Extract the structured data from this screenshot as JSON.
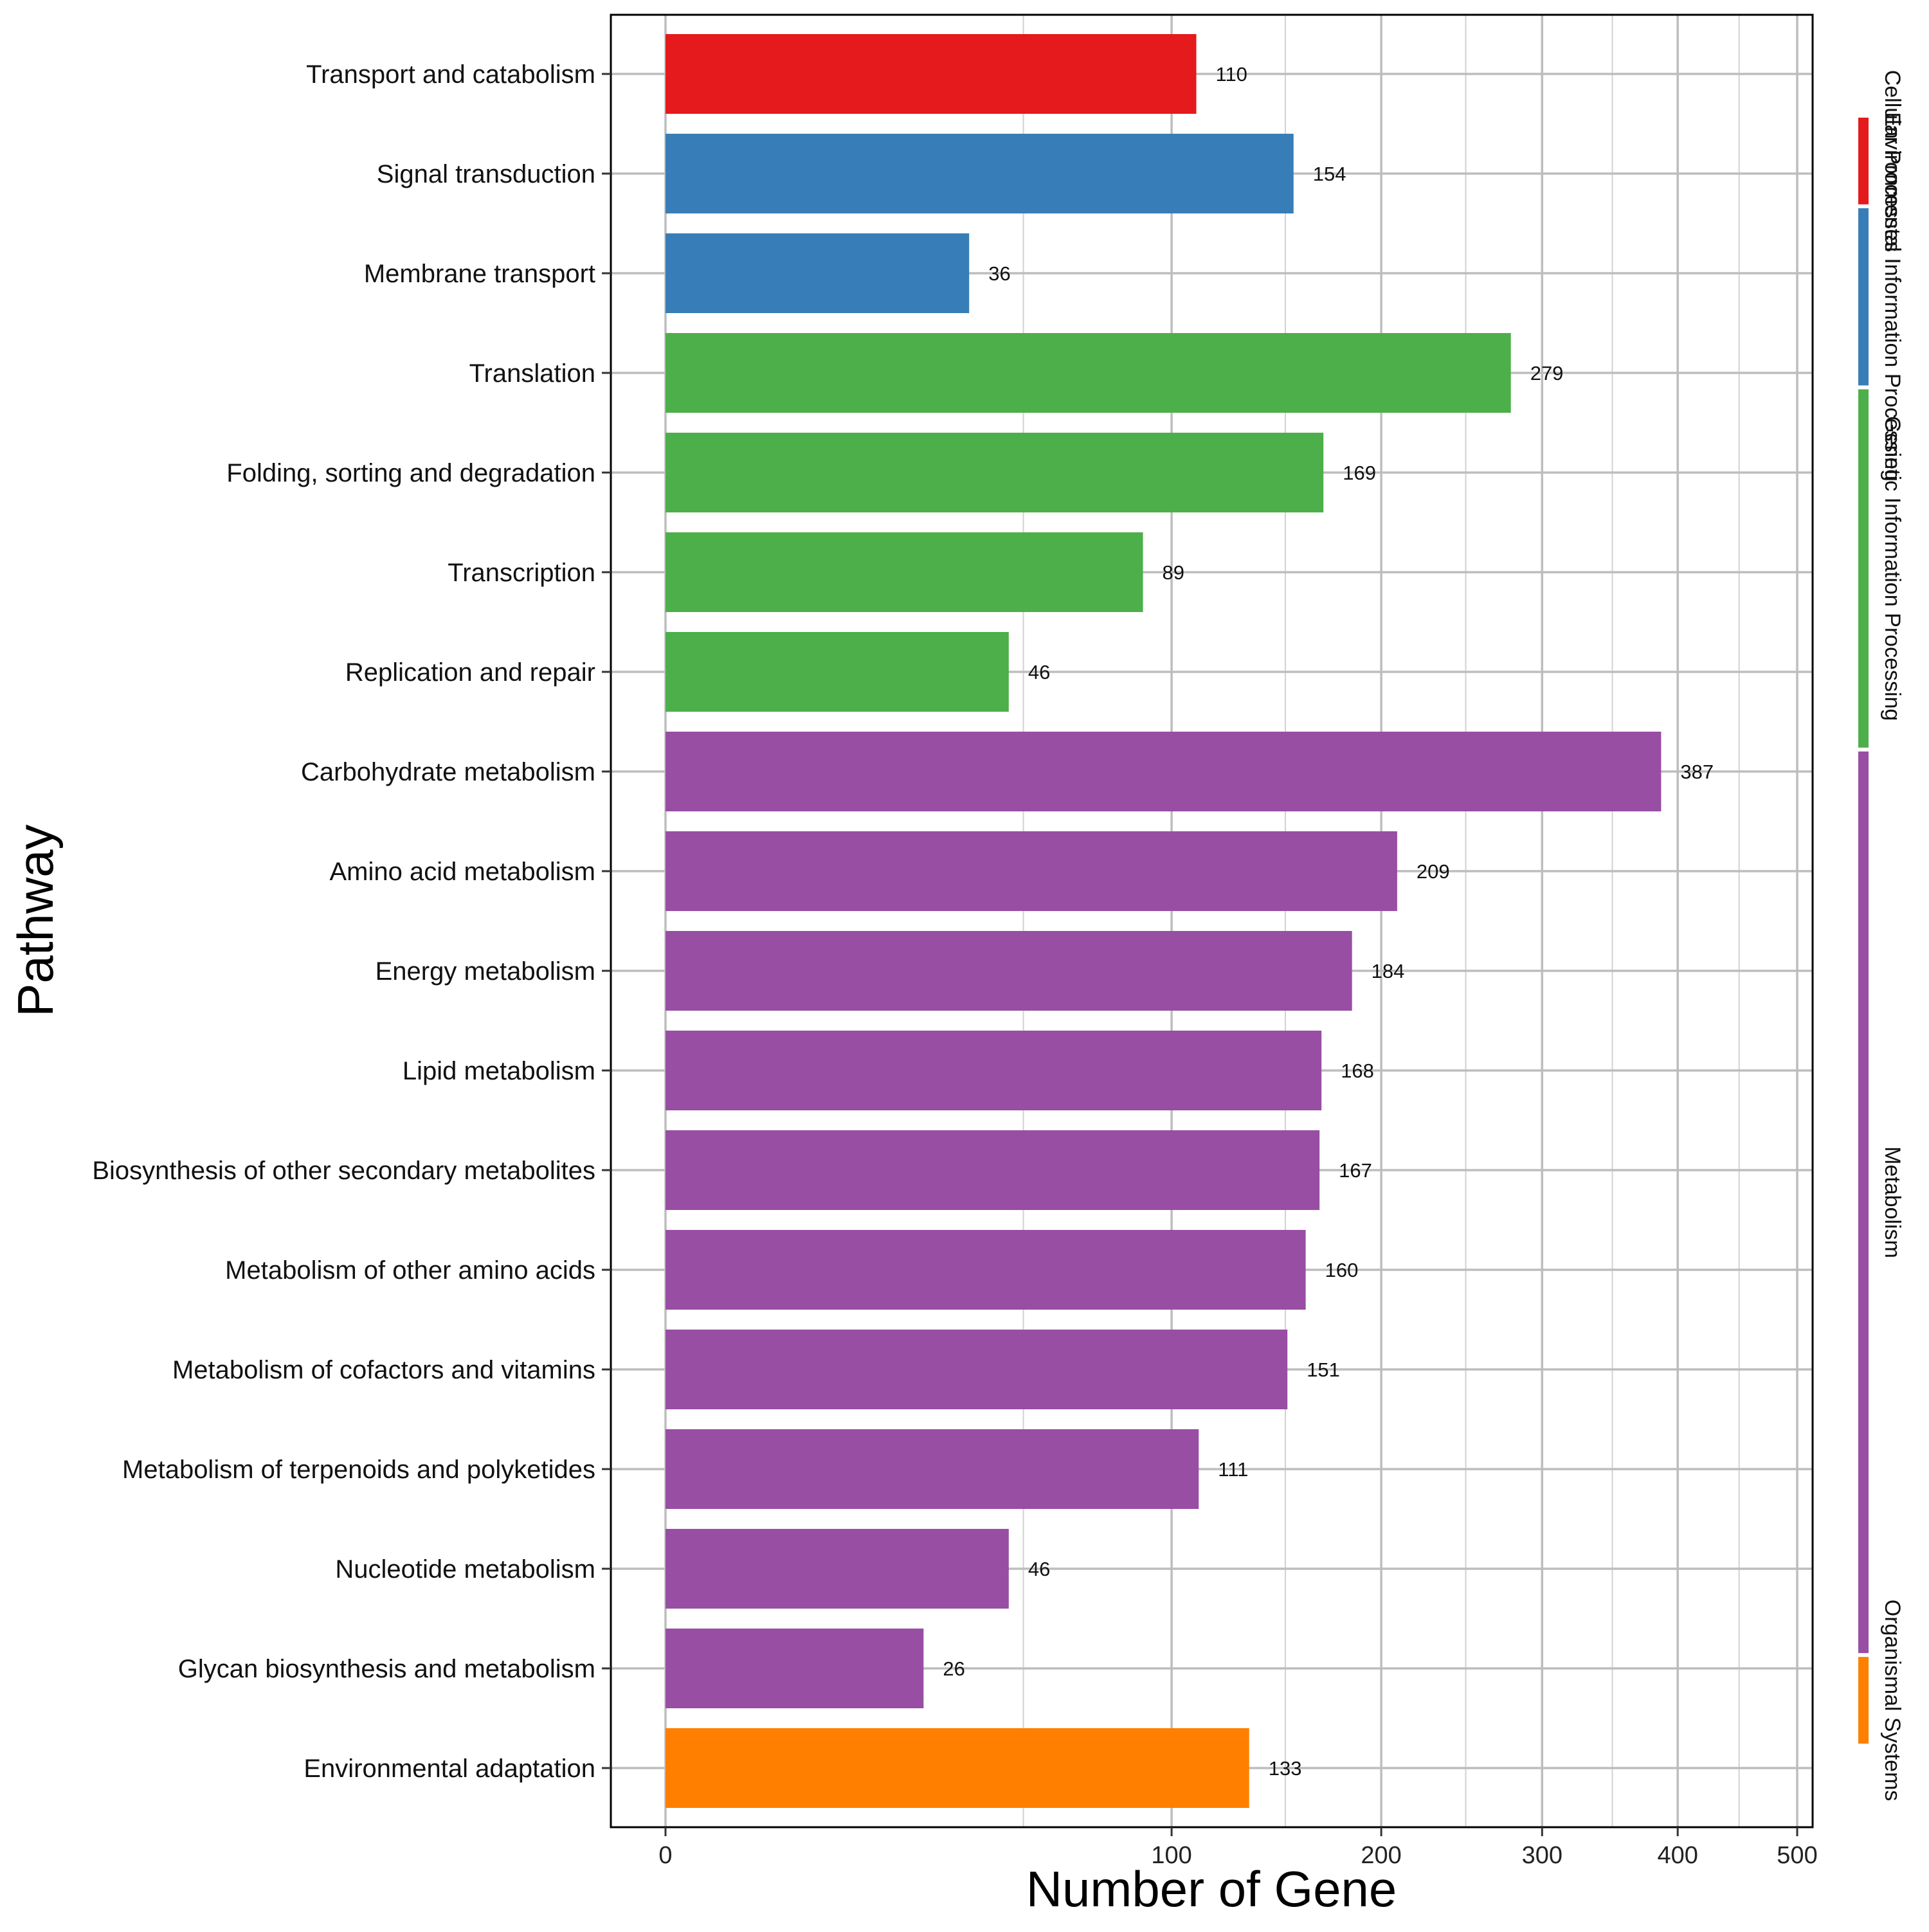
{
  "chart_data": {
    "type": "bar",
    "orientation": "horizontal",
    "xlabel": "Number of Gene",
    "ylabel": "Pathway",
    "x_scale": "sqrt",
    "xlim": [
      0,
      500
    ],
    "x_ticks": [
      0,
      100,
      200,
      300,
      400,
      500
    ],
    "x_tick_labels": [
      "0",
      "100",
      "200",
      "300",
      "400",
      "500"
    ],
    "grid": true,
    "categories": [
      "Transport and catabolism",
      "Signal transduction",
      "Membrane transport",
      "Translation",
      "Folding, sorting and degradation",
      "Transcription",
      "Replication and repair",
      "Carbohydrate metabolism",
      "Amino acid metabolism",
      "Energy metabolism",
      "Lipid metabolism",
      "Biosynthesis of other secondary metabolites",
      "Metabolism of other amino acids",
      "Metabolism of cofactors and vitamins",
      "Metabolism of terpenoids and polyketides",
      "Nucleotide metabolism",
      "Glycan biosynthesis and metabolism",
      "Environmental adaptation"
    ],
    "values": [
      110,
      154,
      36,
      279,
      169,
      89,
      46,
      387,
      209,
      184,
      168,
      167,
      160,
      151,
      111,
      46,
      26,
      133
    ],
    "value_labels": [
      "110",
      "154",
      "36",
      "279",
      "169",
      "89",
      "46",
      "387",
      "209",
      "184",
      "168",
      "167",
      "160",
      "151",
      "111",
      "46",
      "26",
      "133"
    ],
    "groups": [
      {
        "name": "Cellular Processes",
        "color": "#E41A1C",
        "count": 1
      },
      {
        "name": "Environmental Information Processing",
        "color": "#377EB8",
        "count": 2
      },
      {
        "name": "Genetic Information Processing",
        "color": "#4DAF4A",
        "count": 4
      },
      {
        "name": "Metabolism",
        "color": "#984EA3",
        "count": 10
      },
      {
        "name": "Organismal Systems",
        "color": "#FF7F00",
        "count": 1
      }
    ],
    "bar_groups": [
      0,
      1,
      1,
      2,
      2,
      2,
      2,
      3,
      3,
      3,
      3,
      3,
      3,
      3,
      3,
      3,
      3,
      4
    ]
  }
}
